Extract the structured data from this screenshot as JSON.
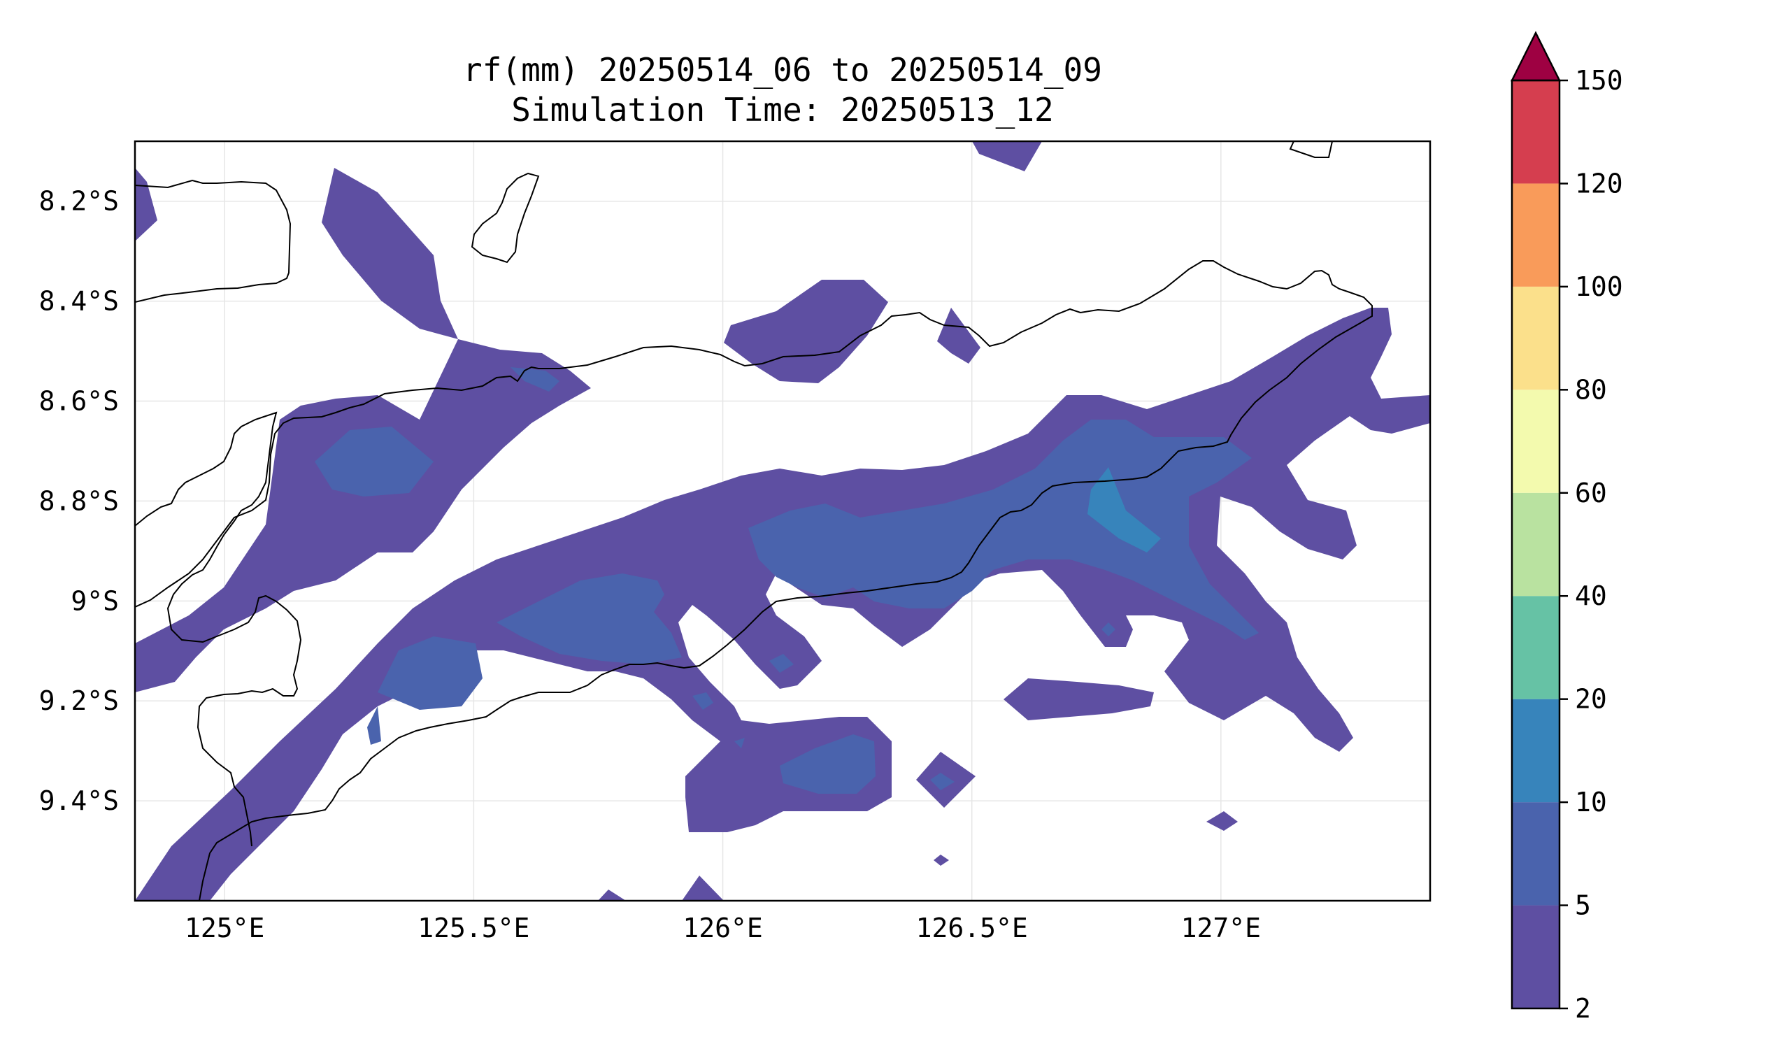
{
  "title": {
    "line1": "rf(mm) 20250514_06 to 20250514_09",
    "line2": "Simulation Time: 20250513_12"
  },
  "chart_data": {
    "type": "contourf",
    "variable": "rf(mm)",
    "lon_range": [
      124.82,
      127.42
    ],
    "lat_range": [
      -9.6,
      -8.08
    ],
    "grid": true,
    "x_ticks": [
      {
        "value": 125.0,
        "label": "125°E"
      },
      {
        "value": 125.5,
        "label": "125.5°E"
      },
      {
        "value": 126.0,
        "label": "126°E"
      },
      {
        "value": 126.5,
        "label": "126.5°E"
      },
      {
        "value": 127.0,
        "label": "127°E"
      }
    ],
    "y_ticks": [
      {
        "value": -8.2,
        "label": "8.2°S"
      },
      {
        "value": -8.4,
        "label": "8.4°S"
      },
      {
        "value": -8.6,
        "label": "8.6°S"
      },
      {
        "value": -8.8,
        "label": "8.8°S"
      },
      {
        "value": -9.0,
        "label": "9°S"
      },
      {
        "value": -9.2,
        "label": "9.2°S"
      },
      {
        "value": -9.4,
        "label": "9.4°S"
      }
    ],
    "colorbar": {
      "levels": [
        "2",
        "5",
        "10",
        "20",
        "40",
        "60",
        "80",
        "100",
        "120",
        "150"
      ],
      "colors": [
        "#5e4fa2",
        "#4a63ad",
        "#3784bb",
        "#66c2a5",
        "#b9e2a0",
        "#f3faae",
        "#fbe08b",
        "#f99b5a",
        "#d53e4f"
      ],
      "extend_color": "#9e0142",
      "extend": "max"
    }
  }
}
